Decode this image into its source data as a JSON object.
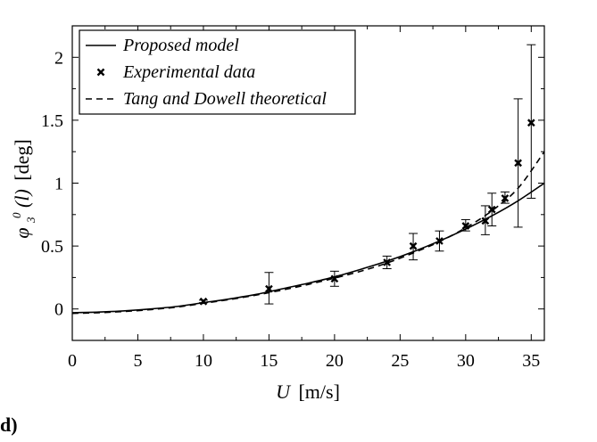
{
  "panel_label": "d)",
  "chart_data": {
    "type": "line",
    "xlabel_italic": "U",
    "xlabel_unit": "[m/s]",
    "ylabel_main": "φ",
    "ylabel_sup": "0",
    "ylabel_sub": "3",
    "ylabel_arg": "(l)",
    "ylabel_unit": "[deg]",
    "xlim": [
      0,
      36
    ],
    "ylim": [
      -0.25,
      2.25
    ],
    "xticks": [
      0,
      5,
      10,
      15,
      20,
      25,
      30,
      35
    ],
    "yticks": [
      0,
      0.5,
      1,
      1.5,
      2
    ],
    "xtick_labels": [
      "0",
      "5",
      "10",
      "15",
      "20",
      "25",
      "30",
      "35"
    ],
    "ytick_labels": [
      "0",
      "0.5",
      "1",
      "1.5",
      "2"
    ],
    "legend_position": "top-left",
    "series": [
      {
        "name": "Proposed model",
        "style": "solid",
        "x": [
          0,
          2,
          4,
          6,
          8,
          10,
          12,
          14,
          16,
          18,
          20,
          22,
          24,
          26,
          28,
          30,
          32,
          34,
          36
        ],
        "y": [
          -0.03,
          -0.025,
          -0.015,
          0.0,
          0.02,
          0.05,
          0.08,
          0.115,
          0.16,
          0.205,
          0.255,
          0.315,
          0.38,
          0.455,
          0.54,
          0.635,
          0.74,
          0.86,
          1.0
        ]
      },
      {
        "name": "Experimental data",
        "style": "marker",
        "x": [
          10,
          15,
          20,
          24,
          26,
          28,
          30,
          31.5,
          32,
          33,
          34,
          35
        ],
        "y": [
          0.06,
          0.16,
          0.24,
          0.37,
          0.5,
          0.54,
          0.66,
          0.7,
          0.79,
          0.88,
          1.16,
          1.48
        ],
        "err_low": [
          0.05,
          0.04,
          0.18,
          0.32,
          0.39,
          0.46,
          0.62,
          0.59,
          0.66,
          0.84,
          0.65,
          0.88
        ],
        "err_high": [
          0.07,
          0.29,
          0.3,
          0.42,
          0.6,
          0.62,
          0.71,
          0.82,
          0.92,
          0.93,
          1.67,
          2.1
        ]
      },
      {
        "name": "Tang and Dowell theoretical",
        "style": "dashed",
        "x": [
          0,
          2,
          4,
          6,
          8,
          10,
          12,
          14,
          16,
          18,
          20,
          22,
          24,
          26,
          28,
          30,
          32,
          34,
          36
        ],
        "y": [
          -0.035,
          -0.03,
          -0.02,
          -0.005,
          0.015,
          0.045,
          0.075,
          0.11,
          0.15,
          0.195,
          0.245,
          0.3,
          0.365,
          0.445,
          0.535,
          0.645,
          0.78,
          0.96,
          1.25
        ]
      }
    ]
  }
}
